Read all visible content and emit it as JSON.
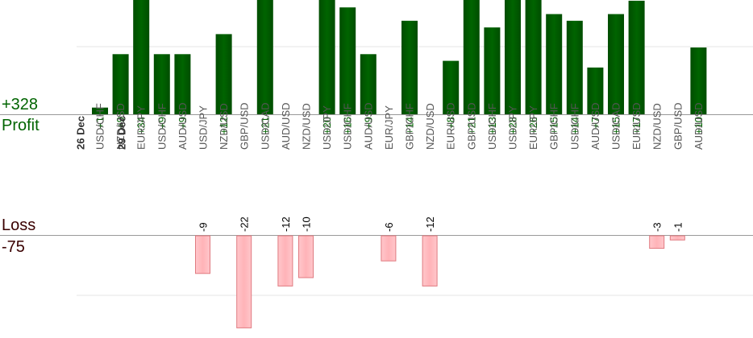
{
  "summary": {
    "profit_total": "+328",
    "profit_label": "Profit",
    "loss_label": "Loss",
    "loss_total": "-75"
  },
  "colors": {
    "profit_bar": "#006400",
    "profit_bar_dark": "#004d00",
    "loss_bar": "#ffb3b8",
    "loss_bar_border": "#e07a80",
    "profit_text": "#006400",
    "loss_text": "#000000",
    "pair_label": "#555555",
    "date_label": "#333333",
    "axis": "#999999",
    "grid": "#e6e6e6"
  },
  "chart_data": {
    "type": "bar",
    "dates": [
      {
        "label": "26 Dec",
        "slot": 0
      },
      {
        "label": "29 Dec",
        "slot": 2
      }
    ],
    "categories": [
      "USD/CHF",
      "NZD/USD",
      "EUR/JPY",
      "USD/CHF",
      "AUD/USD",
      "USD/JPY",
      "NZD/USD",
      "GBP/USD",
      "USD/CAD",
      "AUD/USD",
      "NZD/USD",
      "USD/JPY",
      "USD/CHF",
      "AUD/USD",
      "EUR/JPY",
      "GBP/CHF",
      "NZD/USD",
      "EUR/USD",
      "GBP/USD",
      "USD/CHF",
      "USD/JPY",
      "EUR/JPY",
      "GBP/CHF",
      "USD/CHF",
      "AUD/USD",
      "USD/CAD",
      "EUR/USD",
      "NZD/USD",
      "GBP/USD",
      "AUD/USD"
    ],
    "series": [
      {
        "name": "Profit",
        "values": [
          1,
          9,
          34,
          9,
          9,
          null,
          12,
          null,
          21,
          null,
          null,
          20,
          16,
          9,
          null,
          14,
          null,
          8,
          21,
          13,
          28,
          26,
          15,
          14,
          7,
          15,
          17,
          null,
          null,
          10
        ]
      },
      {
        "name": "Loss",
        "values": [
          null,
          null,
          null,
          null,
          null,
          -9,
          null,
          -22,
          null,
          -12,
          -10,
          null,
          null,
          null,
          -6,
          null,
          -12,
          null,
          null,
          null,
          null,
          null,
          null,
          null,
          null,
          null,
          null,
          -3,
          -1,
          null
        ]
      }
    ],
    "profit_ylim": [
      0,
      16
    ],
    "loss_ylim": [
      -22,
      0
    ]
  }
}
